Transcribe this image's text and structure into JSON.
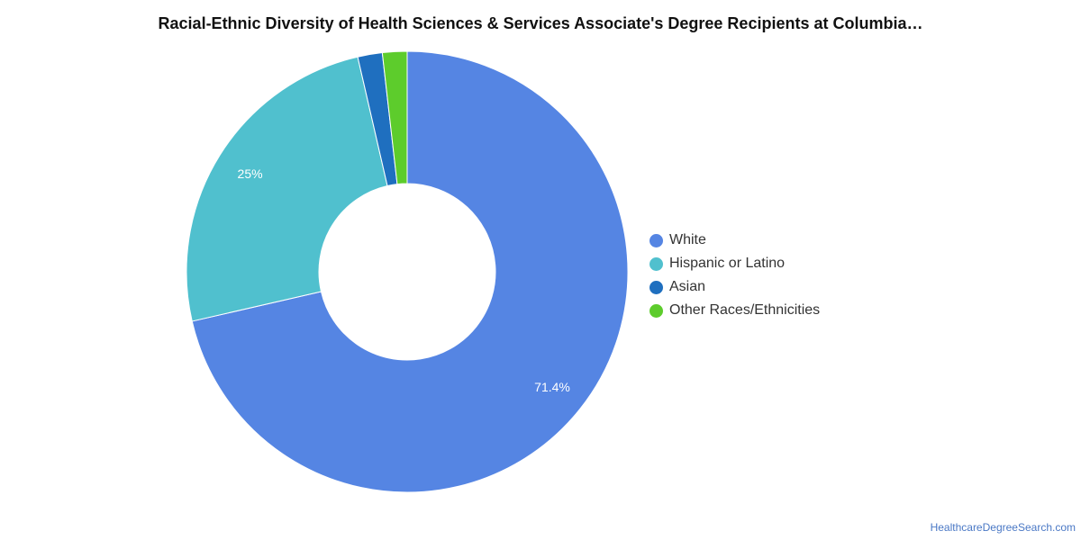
{
  "chart_data": {
    "type": "pie",
    "title": "Racial-Ethnic Diversity of Health Sciences & Services Associate's Degree Recipients at Columbia…",
    "slices": [
      {
        "name": "White",
        "value": 71.4,
        "label": "71.4%",
        "color": "#5585e3"
      },
      {
        "name": "Hispanic or Latino",
        "value": 25.0,
        "label": "25%",
        "color": "#50c0ce"
      },
      {
        "name": "Asian",
        "value": 1.8,
        "label": "",
        "color": "#1f6fbf"
      },
      {
        "name": "Other Races/Ethnicities",
        "value": 1.8,
        "label": "",
        "color": "#5dcc2c"
      }
    ],
    "legend_position": "right"
  },
  "legend": [
    {
      "label": "White",
      "color": "#5585e3"
    },
    {
      "label": "Hispanic or Latino",
      "color": "#50c0ce"
    },
    {
      "label": "Asian",
      "color": "#1f6fbf"
    },
    {
      "label": "Other Races/Ethnicities",
      "color": "#5dcc2c"
    }
  ],
  "source": "HealthcareDegreeSearch.com"
}
